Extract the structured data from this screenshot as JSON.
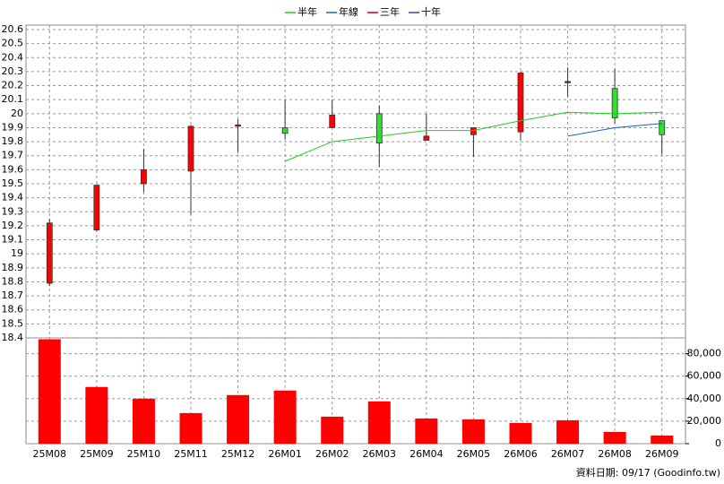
{
  "chart_data": [
    {
      "type": "candlestick",
      "open": [
        18.79,
        19.17,
        19.5,
        19.59,
        19.91,
        19.9,
        19.9,
        20.0,
        19.81,
        19.85,
        19.87,
        20.22,
        20.18,
        19.95
      ],
      "high": [
        19.25,
        19.49,
        19.75,
        19.92,
        19.96,
        20.1,
        20.1,
        20.06,
        20.0,
        19.9,
        20.3,
        20.33,
        20.32,
        19.95
      ],
      "low": [
        18.77,
        19.16,
        19.44,
        19.28,
        19.72,
        19.82,
        19.9,
        19.62,
        19.81,
        19.69,
        19.81,
        20.12,
        19.93,
        19.71
      ],
      "close": [
        19.22,
        19.49,
        19.6,
        19.91,
        19.92,
        19.86,
        19.99,
        19.79,
        19.84,
        19.9,
        20.29,
        20.23,
        19.97,
        19.85
      ],
      "up_color": "#ff0000",
      "down_color": "#33dd33",
      "series": [
        {
          "name": "半年",
          "color": "#22cc22",
          "values": [
            null,
            null,
            null,
            null,
            null,
            19.66,
            19.8,
            19.84,
            19.88,
            19.88,
            19.95,
            20.01,
            20.0,
            20.01
          ]
        },
        {
          "name": "年線",
          "color": "#1f5fbf",
          "values": [
            null,
            null,
            null,
            null,
            null,
            null,
            null,
            null,
            null,
            null,
            null,
            19.84,
            19.9,
            19.93
          ]
        },
        {
          "name": "三年",
          "color": "#cc0000",
          "values": [
            null,
            null,
            null,
            null,
            null,
            null,
            null,
            null,
            null,
            null,
            null,
            null,
            null,
            null
          ]
        },
        {
          "name": "十年",
          "color": "#6a2bb5",
          "values": [
            null,
            null,
            null,
            null,
            null,
            null,
            null,
            null,
            null,
            null,
            null,
            null,
            null,
            null
          ]
        }
      ],
      "ylim": [
        18.4,
        20.6
      ],
      "yticks": [
        18.4,
        18.5,
        18.6,
        18.7,
        18.8,
        18.9,
        19,
        19.1,
        19.2,
        19.3,
        19.4,
        19.5,
        19.6,
        19.7,
        19.8,
        19.9,
        20,
        20.1,
        20.2,
        20.3,
        20.4,
        20.5,
        20.6
      ],
      "grid": true,
      "legend": "top"
    },
    {
      "type": "bar",
      "categories": [
        "25M08",
        "25M09",
        "25M10",
        "25M11",
        "25M12",
        "26M01",
        "26M02",
        "26M03",
        "26M04",
        "26M05",
        "26M06",
        "26M07",
        "26M08",
        "26M09"
      ],
      "values": [
        92800,
        50400,
        40000,
        27200,
        43200,
        47200,
        24000,
        37600,
        22400,
        21600,
        18400,
        20800,
        10400,
        7200
      ],
      "color": "#ff0000",
      "ylim": [
        0,
        94000
      ],
      "yticks": [
        0,
        {
          "value": 20000,
          "label": "20,000"
        },
        {
          "value": 40000,
          "label": "40,000"
        },
        {
          "value": 60000,
          "label": "60,000"
        },
        {
          "value": 80000,
          "label": "80,000"
        }
      ],
      "grid": true
    }
  ],
  "footer": "資料日期: 09/17 (Goodinfo.tw)"
}
